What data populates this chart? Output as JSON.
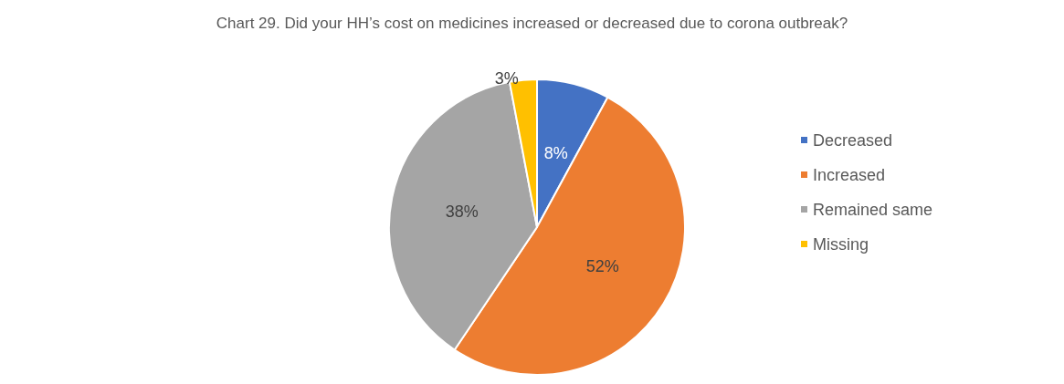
{
  "chart_data": {
    "type": "pie",
    "title": "Chart 29. Did your HH’s cost on medicines increased or decreased due to corona outbreak?",
    "categories": [
      "Decreased",
      "Increased",
      "Remained same",
      "Missing"
    ],
    "values": [
      8,
      52,
      38,
      3
    ],
    "value_labels": [
      "8%",
      "52%",
      "38%",
      "3%"
    ],
    "colors": [
      "#4472c4",
      "#ed7d31",
      "#a5a5a5",
      "#ffc000"
    ],
    "legend": "right"
  }
}
